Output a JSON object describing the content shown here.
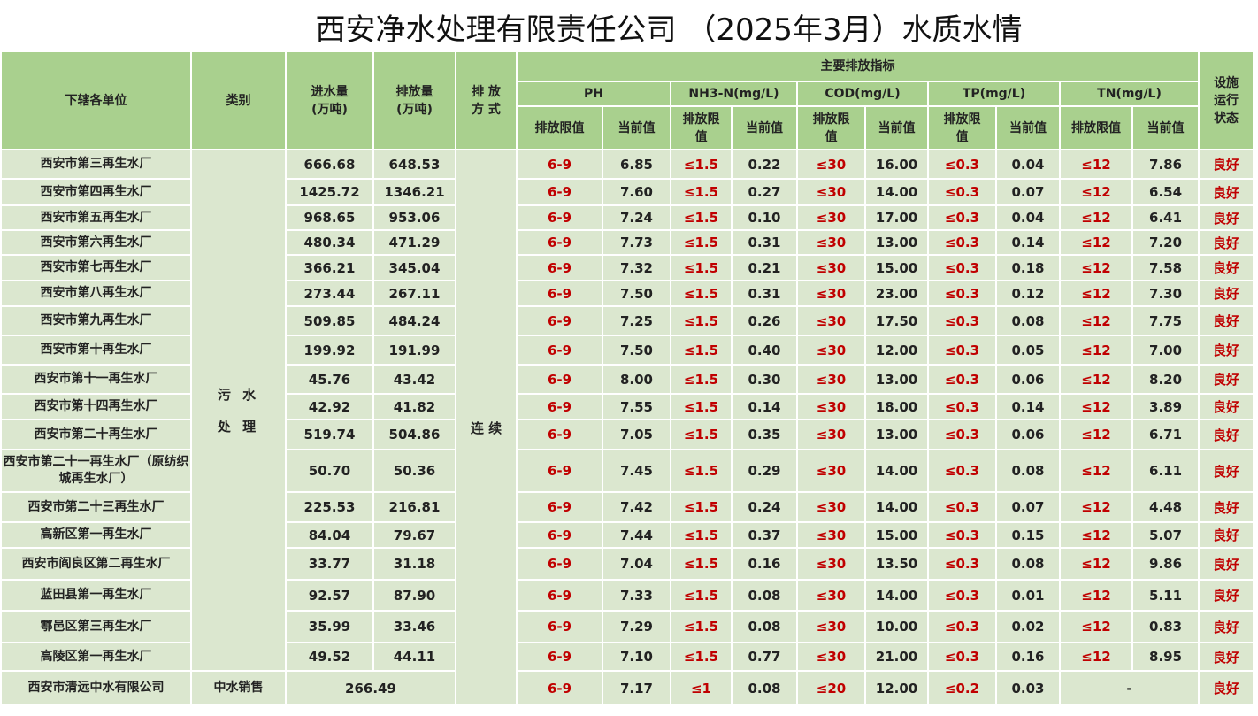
{
  "title": "西安净水处理有限责任公司 （2025年3月）水质水情",
  "headers": {
    "unit": "下辖各单位",
    "category": "类别",
    "inflow": "进水量\n(万吨)",
    "outflow": "排放量\n(万吨)",
    "mode": "排 放\n方 式",
    "main_indicators": "主要排放指标",
    "ph": "PH",
    "nh3n": "NH3-N(mg/L)",
    "cod": "COD(mg/L)",
    "tp": "TP(mg/L)",
    "tn": "TN(mg/L)",
    "limit_wide": "排放限值",
    "limit_narrow": "排放限\n值",
    "current": "当前值",
    "status": "设施\n运行\n状态"
  },
  "category_sewage": [
    "污 水",
    "处 理"
  ],
  "mode_value": "连 续",
  "limits": {
    "ph": "6-9",
    "nh3n": "≤1.5",
    "cod": "≤30",
    "tp": "≤0.3",
    "tn": "≤12"
  },
  "rows": [
    {
      "unit": "西安市第三再生水厂",
      "inflow": "666.68",
      "outflow": "648.53",
      "ph": "6.85",
      "nh3n": "0.22",
      "cod": "16.00",
      "tp": "0.04",
      "tn": "7.86",
      "status": "良好"
    },
    {
      "unit": "西安市第四再生水厂",
      "inflow": "1425.72",
      "outflow": "1346.21",
      "ph": "7.60",
      "nh3n": "0.27",
      "cod": "14.00",
      "tp": "0.07",
      "tn": "6.54",
      "status": "良好"
    },
    {
      "unit": "西安市第五再生水厂",
      "inflow": "968.65",
      "outflow": "953.06",
      "ph": "7.24",
      "nh3n": "0.10",
      "cod": "17.00",
      "tp": "0.04",
      "tn": "6.41",
      "status": "良好"
    },
    {
      "unit": "西安市第六再生水厂",
      "inflow": "480.34",
      "outflow": "471.29",
      "ph": "7.73",
      "nh3n": "0.31",
      "cod": "13.00",
      "tp": "0.14",
      "tn": "7.20",
      "status": "良好"
    },
    {
      "unit": "西安市第七再生水厂",
      "inflow": "366.21",
      "outflow": "345.04",
      "ph": "7.32",
      "nh3n": "0.21",
      "cod": "15.00",
      "tp": "0.18",
      "tn": "7.58",
      "status": "良好"
    },
    {
      "unit": "西安市第八再生水厂",
      "inflow": "273.44",
      "outflow": "267.11",
      "ph": "7.50",
      "nh3n": "0.31",
      "cod": "23.00",
      "tp": "0.12",
      "tn": "7.30",
      "status": "良好"
    },
    {
      "unit": "西安市第九再生水厂",
      "inflow": "509.85",
      "outflow": "484.24",
      "ph": "7.25",
      "nh3n": "0.26",
      "cod": "17.50",
      "tp": "0.08",
      "tn": "7.75",
      "status": "良好"
    },
    {
      "unit": "西安市第十再生水厂",
      "inflow": "199.92",
      "outflow": "191.99",
      "ph": "7.50",
      "nh3n": "0.40",
      "cod": "12.00",
      "tp": "0.05",
      "tn": "7.00",
      "status": "良好"
    },
    {
      "unit": "西安市第十一再生水厂",
      "inflow": "45.76",
      "outflow": "43.42",
      "ph": "8.00",
      "nh3n": "0.30",
      "cod": "13.00",
      "tp": "0.06",
      "tn": "8.20",
      "status": "良好"
    },
    {
      "unit": "西安市第十四再生水厂",
      "inflow": "42.92",
      "outflow": "41.82",
      "ph": "7.55",
      "nh3n": "0.14",
      "cod": "18.00",
      "tp": "0.14",
      "tn": "3.89",
      "status": "良好"
    },
    {
      "unit": "西安市第二十再生水厂",
      "inflow": "519.74",
      "outflow": "504.86",
      "ph": "7.05",
      "nh3n": "0.35",
      "cod": "13.00",
      "tp": "0.06",
      "tn": "6.71",
      "status": "良好"
    },
    {
      "unit": "西安市第二十一再生水厂（原纺织城再生水厂）",
      "inflow": "50.70",
      "outflow": "50.36",
      "ph": "7.45",
      "nh3n": "0.29",
      "cod": "14.00",
      "tp": "0.08",
      "tn": "6.11",
      "status": "良好"
    },
    {
      "unit": "西安市第二十三再生水厂",
      "inflow": "225.53",
      "outflow": "216.81",
      "ph": "7.42",
      "nh3n": "0.24",
      "cod": "14.00",
      "tp": "0.07",
      "tn": "4.48",
      "status": "良好"
    },
    {
      "unit": "高新区第一再生水厂",
      "inflow": "84.04",
      "outflow": "79.67",
      "ph": "7.44",
      "nh3n": "0.37",
      "cod": "15.00",
      "tp": "0.15",
      "tn": "5.07",
      "status": "良好"
    },
    {
      "unit": "西安市阎良区第二再生水厂",
      "inflow": "33.77",
      "outflow": "31.18",
      "ph": "7.04",
      "nh3n": "0.16",
      "cod": "13.50",
      "tp": "0.08",
      "tn": "9.86",
      "status": "良好"
    },
    {
      "unit": "蓝田县第一再生水厂",
      "inflow": "92.57",
      "outflow": "87.90",
      "ph": "7.33",
      "nh3n": "0.08",
      "cod": "14.00",
      "tp": "0.01",
      "tn": "5.11",
      "status": "良好"
    },
    {
      "unit": "鄠邑区第三再生水厂",
      "inflow": "35.99",
      "outflow": "33.46",
      "ph": "7.29",
      "nh3n": "0.08",
      "cod": "10.00",
      "tp": "0.02",
      "tn": "0.83",
      "status": "良好"
    },
    {
      "unit": "高陵区第一再生水厂",
      "inflow": "49.52",
      "outflow": "44.11",
      "ph": "7.10",
      "nh3n": "0.77",
      "cod": "21.00",
      "tp": "0.16",
      "tn": "8.95",
      "status": "良好"
    }
  ],
  "last_row": {
    "unit": "西安市清远中水有限公司",
    "category": "中水销售",
    "volume": "266.49",
    "ph_limit": "6-9",
    "ph": "7.17",
    "nh3n_limit": "≤1",
    "nh3n": "0.08",
    "cod_limit": "≤20",
    "cod": "12.00",
    "tp_limit": "≤0.2",
    "tp": "0.03",
    "tn_value": "-",
    "status": "良好"
  },
  "colors": {
    "header_green": "#a9d08e",
    "body_green": "#dbe7cf",
    "limit_red": "#c00000"
  }
}
